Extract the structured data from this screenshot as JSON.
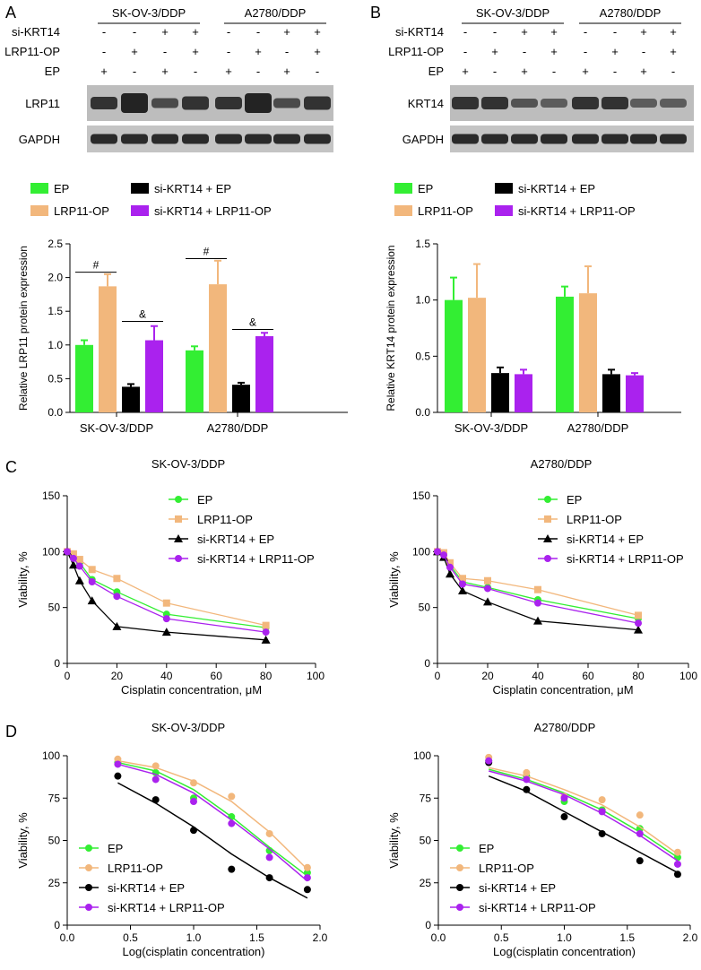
{
  "panels": {
    "A": {
      "letter": "A",
      "groups": [
        "SK-OV-3/DDP",
        "A2780/DDP"
      ],
      "row_labels": [
        "si-KRT14",
        "LRP11-OP",
        "EP"
      ],
      "signs": [
        [
          "-",
          "-",
          "+",
          "+",
          "-",
          "-",
          "+",
          "+"
        ],
        [
          "-",
          "+",
          "-",
          "+",
          "-",
          "+",
          "-",
          "+"
        ],
        [
          "+",
          "-",
          "+",
          "-",
          "+",
          "-",
          "+",
          "-"
        ]
      ],
      "blots": [
        "LRP11",
        "GAPDH"
      ]
    },
    "B": {
      "letter": "B",
      "groups": [
        "SK-OV-3/DDP",
        "A2780/DDP"
      ],
      "row_labels": [
        "si-KRT14",
        "LRP11-OP",
        "EP"
      ],
      "signs": [
        [
          "-",
          "-",
          "+",
          "+",
          "-",
          "-",
          "+",
          "+"
        ],
        [
          "-",
          "+",
          "-",
          "+",
          "-",
          "+",
          "-",
          "+"
        ],
        [
          "+",
          "-",
          "+",
          "-",
          "+",
          "-",
          "+",
          "-"
        ]
      ],
      "blots": [
        "KRT14",
        "GAPDH"
      ]
    },
    "C": {
      "letter": "C"
    },
    "D": {
      "letter": "D"
    }
  },
  "colors": {
    "EP": "#33ee33",
    "LRP11-OP": "#f2b77c",
    "si-KRT14 + EP": "#000000",
    "si-KRT14 + LRP11-OP": "#aa22ee"
  },
  "chart_data": [
    {
      "id": "A",
      "type": "bar",
      "title": "",
      "ylabel": "Relative LRP11 protein expression",
      "categories": [
        "SK-OV-3/DDP",
        "A2780/DDP"
      ],
      "ylim": [
        0,
        2.5
      ],
      "yticks": [
        "0.0",
        "0.5",
        "1.0",
        "1.5",
        "2.0",
        "2.5"
      ],
      "legend": [
        "EP",
        "LRP11-OP",
        "si-KRT14 + EP",
        "si-KRT14 + LRP11-OP"
      ],
      "series": [
        {
          "name": "EP",
          "values": [
            1.0,
            0.92
          ],
          "errors": [
            0.07,
            0.06
          ]
        },
        {
          "name": "LRP11-OP",
          "values": [
            1.87,
            1.9
          ],
          "errors": [
            0.18,
            0.35
          ]
        },
        {
          "name": "si-KRT14 + EP",
          "values": [
            0.38,
            0.41
          ],
          "errors": [
            0.04,
            0.03
          ]
        },
        {
          "name": "si-KRT14 + LRP11-OP",
          "values": [
            1.07,
            1.13
          ],
          "errors": [
            0.21,
            0.05
          ]
        }
      ],
      "annotations": [
        {
          "label": "#",
          "group": 0,
          "from": 0,
          "to": 1,
          "y": 2.08
        },
        {
          "label": "&",
          "group": 0,
          "from": 2,
          "to": 3,
          "y": 1.35
        },
        {
          "label": "#",
          "group": 1,
          "from": 0,
          "to": 1,
          "y": 2.28
        },
        {
          "label": "&",
          "group": 1,
          "from": 2,
          "to": 3,
          "y": 1.23
        }
      ]
    },
    {
      "id": "B",
      "type": "bar",
      "title": "",
      "ylabel": "Relative KRT14 protein expression",
      "categories": [
        "SK-OV-3/DDP",
        "A2780/DDP"
      ],
      "ylim": [
        0,
        1.5
      ],
      "yticks": [
        "0.0",
        "0.5",
        "1.0",
        "1.5"
      ],
      "legend": [
        "EP",
        "LRP11-OP",
        "si-KRT14 + EP",
        "si-KRT14 + LRP11-OP"
      ],
      "series": [
        {
          "name": "EP",
          "values": [
            1.0,
            1.03
          ],
          "errors": [
            0.2,
            0.09
          ]
        },
        {
          "name": "LRP11-OP",
          "values": [
            1.02,
            1.06
          ],
          "errors": [
            0.3,
            0.24
          ]
        },
        {
          "name": "si-KRT14 + EP",
          "values": [
            0.35,
            0.34
          ],
          "errors": [
            0.05,
            0.04
          ]
        },
        {
          "name": "si-KRT14 + LRP11-OP",
          "values": [
            0.34,
            0.33
          ],
          "errors": [
            0.04,
            0.02
          ]
        }
      ],
      "annotations": []
    },
    {
      "id": "C1",
      "type": "line",
      "title": "SK-OV-3/DDP",
      "xlabel": "Cisplatin concentration, μM",
      "ylabel": "Viability, %",
      "xlim": [
        0,
        100
      ],
      "ylim": [
        0,
        150
      ],
      "xticks": [
        "0",
        "20",
        "40",
        "60",
        "80",
        "100"
      ],
      "yticks": [
        "0",
        "50",
        "100",
        "150"
      ],
      "x": [
        0,
        2.5,
        5,
        10,
        20,
        40,
        80
      ],
      "legend": [
        "EP",
        "LRP11-OP",
        "si-KRT14 + EP",
        "si-KRT14 + LRP11-OP"
      ],
      "series": [
        {
          "name": "EP",
          "marker": "circle",
          "values": [
            100,
            95,
            90,
            75,
            64,
            44,
            32
          ]
        },
        {
          "name": "LRP11-OP",
          "marker": "square",
          "values": [
            100,
            98,
            93,
            84,
            76,
            54,
            34
          ]
        },
        {
          "name": "si-KRT14 + EP",
          "marker": "triangle",
          "values": [
            100,
            88,
            74,
            56,
            33,
            28,
            21
          ]
        },
        {
          "name": "si-KRT14 + LRP11-OP",
          "marker": "circle",
          "values": [
            100,
            94,
            87,
            73,
            60,
            40,
            28
          ]
        }
      ]
    },
    {
      "id": "C2",
      "type": "line",
      "title": "A2780/DDP",
      "xlabel": "Cisplatin concentration, μM",
      "ylabel": "Viability, %",
      "xlim": [
        0,
        100
      ],
      "ylim": [
        0,
        150
      ],
      "xticks": [
        "0",
        "20",
        "40",
        "60",
        "80",
        "100"
      ],
      "yticks": [
        "0",
        "50",
        "100",
        "150"
      ],
      "x": [
        0,
        2.5,
        5,
        10,
        20,
        40,
        80
      ],
      "legend": [
        "EP",
        "LRP11-OP",
        "si-KRT14 + EP",
        "si-KRT14 + LRP11-OP"
      ],
      "series": [
        {
          "name": "EP",
          "marker": "circle",
          "values": [
            100,
            98,
            88,
            73,
            68,
            57,
            40
          ]
        },
        {
          "name": "LRP11-OP",
          "marker": "square",
          "values": [
            100,
            99,
            90,
            76,
            74,
            66,
            43
          ]
        },
        {
          "name": "si-KRT14 + EP",
          "marker": "triangle",
          "values": [
            100,
            95,
            80,
            65,
            55,
            38,
            30
          ]
        },
        {
          "name": "si-KRT14 + LRP11-OP",
          "marker": "circle",
          "values": [
            100,
            97,
            86,
            71,
            67,
            54,
            36
          ]
        }
      ]
    },
    {
      "id": "D1",
      "type": "scatter",
      "title": "SK-OV-3/DDP",
      "xlabel": "Log(cisplatin concentration)",
      "ylabel": "Viability, %",
      "xlim": [
        0,
        2.0
      ],
      "ylim": [
        0,
        100
      ],
      "xticks": [
        "0.0",
        "0.5",
        "1.0",
        "1.5",
        "2.0"
      ],
      "yticks": [
        "0",
        "25",
        "50",
        "75",
        "100"
      ],
      "x": [
        0.4,
        0.7,
        1.0,
        1.3,
        1.6,
        1.9
      ],
      "legend": [
        "EP",
        "LRP11-OP",
        "si-KRT14 + EP",
        "si-KRT14 + LRP11-OP"
      ],
      "series": [
        {
          "name": "EP",
          "values": [
            96,
            90,
            75,
            64,
            44,
            31
          ],
          "fit": [
            96,
            91,
            80,
            64,
            46,
            29
          ]
        },
        {
          "name": "LRP11-OP",
          "values": [
            98,
            94,
            84,
            76,
            54,
            34
          ],
          "fit": [
            97,
            93,
            85,
            73,
            55,
            33
          ]
        },
        {
          "name": "si-KRT14 + EP",
          "values": [
            88,
            74,
            56,
            33,
            28,
            21
          ],
          "fit": [
            84,
            72,
            58,
            42,
            28,
            16
          ]
        },
        {
          "name": "si-KRT14 + LRP11-OP",
          "values": [
            95,
            86,
            73,
            60,
            40,
            28
          ],
          "fit": [
            95,
            89,
            78,
            62,
            45,
            26
          ]
        }
      ]
    },
    {
      "id": "D2",
      "type": "scatter",
      "title": "A2780/DDP",
      "xlabel": "Log(cisplatin concentration)",
      "ylabel": "Viability, %",
      "xlim": [
        0,
        2.0
      ],
      "ylim": [
        0,
        100
      ],
      "xticks": [
        "0.0",
        "0.5",
        "1.0",
        "1.5",
        "2.0"
      ],
      "yticks": [
        "0",
        "25",
        "50",
        "75",
        "100"
      ],
      "x": [
        0.4,
        0.7,
        1.0,
        1.3,
        1.6,
        1.9
      ],
      "legend": [
        "EP",
        "LRP11-OP",
        "si-KRT14 + EP",
        "si-KRT14 + LRP11-OP"
      ],
      "series": [
        {
          "name": "EP",
          "values": [
            97,
            88,
            73,
            68,
            57,
            40
          ],
          "fit": [
            92,
            86,
            78,
            68,
            55,
            40
          ]
        },
        {
          "name": "LRP11-OP",
          "values": [
            99,
            90,
            76,
            74,
            65,
            43
          ],
          "fit": [
            93,
            88,
            80,
            71,
            58,
            42
          ]
        },
        {
          "name": "si-KRT14 + EP",
          "values": [
            96,
            80,
            64,
            54,
            38,
            30
          ],
          "fit": [
            88,
            79,
            67,
            55,
            43,
            31
          ]
        },
        {
          "name": "si-KRT14 + LRP11-OP",
          "values": [
            97,
            86,
            75,
            67,
            54,
            36
          ],
          "fit": [
            91,
            85,
            77,
            66,
            53,
            38
          ]
        }
      ]
    }
  ]
}
